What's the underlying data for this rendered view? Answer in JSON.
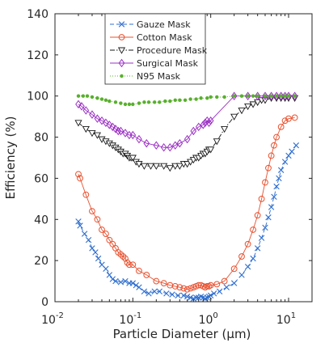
{
  "chart_data": {
    "type": "scatter",
    "xlabel": "Particle Diameter (μm)",
    "ylabel": "Efficiency (%)",
    "xscale": "log",
    "xlim": [
      0.01,
      20
    ],
    "ylim": [
      0,
      140
    ],
    "x_ticks": [
      {
        "value": 0.01,
        "base": "10",
        "exp": "-2"
      },
      {
        "value": 0.1,
        "base": "10",
        "exp": "-1"
      },
      {
        "value": 1,
        "base": "10",
        "exp": "0"
      },
      {
        "value": 10,
        "base": "10",
        "exp": "1"
      }
    ],
    "y_ticks": [
      "0",
      "20",
      "40",
      "60",
      "80",
      "100",
      "120",
      "140"
    ],
    "grid": false,
    "legend_position": "top-center",
    "series": [
      {
        "name": "Gauze Mask",
        "color": "#2f6fd0",
        "line": "dashed",
        "marker": "x",
        "x": [
          0.02,
          0.021,
          0.024,
          0.027,
          0.03,
          0.033,
          0.036,
          0.04,
          0.045,
          0.05,
          0.055,
          0.06,
          0.07,
          0.08,
          0.09,
          0.1,
          0.11,
          0.12,
          0.14,
          0.16,
          0.19,
          0.22,
          0.27,
          0.32,
          0.38,
          0.45,
          0.5,
          0.55,
          0.6,
          0.65,
          0.7,
          0.75,
          0.8,
          0.85,
          0.9,
          0.95,
          1.0,
          1.1,
          1.3,
          1.6,
          2.0,
          2.5,
          3.0,
          3.5,
          4.0,
          4.5,
          5.0,
          5.5,
          6.0,
          6.5,
          7.0,
          7.5,
          8.0,
          9.0,
          10.0,
          11.0,
          12.5
        ],
        "y": [
          39,
          37,
          33,
          30,
          26,
          24,
          21,
          18,
          16,
          13,
          11,
          10,
          9.5,
          10,
          9,
          9,
          8,
          7,
          5,
          4,
          5,
          5,
          4,
          3.5,
          3,
          3,
          2.5,
          2,
          1.5,
          2,
          2,
          2.5,
          2,
          1.5,
          2,
          2.5,
          3,
          4,
          5,
          7,
          9,
          13,
          17,
          21,
          26,
          31,
          36,
          41,
          46,
          51,
          56,
          60,
          64,
          68,
          71,
          73,
          76
        ]
      },
      {
        "name": "Cotton Mask",
        "color": "#e8512f",
        "line": "solid",
        "marker": "circle",
        "x": [
          0.02,
          0.021,
          0.025,
          0.03,
          0.035,
          0.04,
          0.045,
          0.05,
          0.055,
          0.06,
          0.065,
          0.07,
          0.075,
          0.08,
          0.085,
          0.09,
          0.1,
          0.12,
          0.15,
          0.2,
          0.25,
          0.3,
          0.35,
          0.4,
          0.45,
          0.5,
          0.55,
          0.6,
          0.65,
          0.7,
          0.75,
          0.8,
          0.85,
          0.9,
          0.95,
          1.0,
          1.2,
          1.5,
          2.0,
          2.5,
          3.0,
          3.5,
          4.0,
          4.5,
          5.0,
          5.5,
          6.0,
          6.5,
          7.0,
          8.0,
          9.0,
          10.0,
          12.0
        ],
        "y": [
          62,
          60,
          52,
          44,
          40,
          35,
          33,
          30,
          28,
          26,
          24,
          23,
          22,
          21,
          19,
          18,
          18,
          15,
          13,
          10,
          9,
          8,
          7.5,
          7,
          6.5,
          6,
          6.5,
          7,
          7.5,
          8,
          8,
          7.5,
          7,
          7.5,
          7.5,
          8,
          8.5,
          10,
          16,
          22,
          28,
          35,
          42,
          50,
          58,
          65,
          71,
          76,
          80,
          85,
          88,
          89,
          89.5
        ]
      },
      {
        "name": "Procedure Mask",
        "color": "#1a1a1a",
        "line": "dashdot",
        "marker": "triangle-down",
        "x": [
          0.02,
          0.025,
          0.03,
          0.035,
          0.04,
          0.045,
          0.05,
          0.055,
          0.06,
          0.065,
          0.07,
          0.075,
          0.08,
          0.085,
          0.09,
          0.095,
          0.1,
          0.11,
          0.12,
          0.14,
          0.17,
          0.2,
          0.25,
          0.3,
          0.35,
          0.4,
          0.45,
          0.5,
          0.55,
          0.6,
          0.65,
          0.7,
          0.75,
          0.8,
          0.85,
          0.9,
          0.95,
          1.0,
          1.2,
          1.5,
          2.0,
          2.5,
          3.0,
          3.5,
          4.0,
          4.5,
          5.0,
          6.0,
          7.0,
          8.0,
          9.0,
          10.0,
          12.0
        ],
        "y": [
          87,
          84,
          82,
          81,
          79,
          78,
          77,
          76,
          75,
          74,
          73,
          72,
          72,
          71,
          70,
          70,
          70,
          68,
          67,
          66,
          66,
          66,
          66,
          65,
          66,
          66,
          67,
          67,
          68,
          69,
          70,
          70,
          71,
          72,
          72,
          73,
          74,
          74,
          78,
          84,
          90,
          93,
          95,
          96,
          97,
          98,
          98,
          99,
          99,
          99,
          99,
          99,
          99
        ]
      },
      {
        "name": "Surgical Mask",
        "color": "#9b30c4",
        "line": "solid",
        "marker": "diamond",
        "x": [
          0.02,
          0.022,
          0.025,
          0.03,
          0.035,
          0.04,
          0.045,
          0.05,
          0.055,
          0.06,
          0.065,
          0.07,
          0.08,
          0.09,
          0.1,
          0.12,
          0.15,
          0.2,
          0.25,
          0.3,
          0.35,
          0.4,
          0.5,
          0.6,
          0.7,
          0.8,
          0.85,
          0.9,
          0.95,
          1.0,
          2.0,
          3.0,
          4.0,
          5.0,
          6.0,
          7.0,
          8.0,
          9.0,
          10.0,
          12.0
        ],
        "y": [
          96,
          95,
          93,
          91,
          89,
          88,
          87,
          86,
          85,
          84,
          83,
          83,
          82,
          81,
          81,
          79,
          77,
          76,
          75,
          75,
          76,
          77,
          79,
          83,
          85,
          86,
          87,
          88,
          87,
          88,
          100,
          100,
          100,
          100,
          100,
          100,
          100,
          100,
          100,
          100
        ]
      },
      {
        "name": "N95 Mask",
        "color": "#58b02c",
        "line": "dotted",
        "marker": "dot",
        "x": [
          0.02,
          0.023,
          0.026,
          0.03,
          0.035,
          0.04,
          0.045,
          0.05,
          0.06,
          0.07,
          0.08,
          0.09,
          0.1,
          0.12,
          0.14,
          0.16,
          0.19,
          0.22,
          0.26,
          0.3,
          0.35,
          0.4,
          0.47,
          0.55,
          0.65,
          0.75,
          0.9,
          1.0,
          1.2,
          1.5,
          2.0,
          2.5,
          3.0,
          3.5,
          4.0,
          5.0,
          6.0,
          7.0,
          8.0,
          9.0,
          10.0,
          12.0
        ],
        "y": [
          100,
          100,
          100,
          99.5,
          99,
          98.5,
          98,
          97.5,
          97,
          96.5,
          96,
          96,
          96,
          96.5,
          97,
          97,
          97,
          97,
          97.5,
          97.5,
          98,
          98,
          98,
          98.5,
          98.5,
          99,
          99,
          99.5,
          99.5,
          99.5,
          100,
          100,
          100,
          100,
          100,
          100,
          100,
          100,
          100,
          100,
          100,
          100
        ]
      }
    ]
  }
}
